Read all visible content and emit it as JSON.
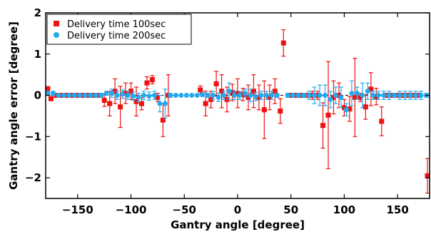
{
  "chart_data": {
    "type": "scatter",
    "xlabel": "Gantry angle [degree]",
    "ylabel": "Gantry angle error [degree]",
    "xlim": [
      -180,
      180
    ],
    "ylim": [
      -2.5,
      2
    ],
    "xticks": [
      -150,
      -100,
      -50,
      0,
      50,
      100,
      150
    ],
    "xtick_labels": [
      "−150",
      "−100",
      "−50",
      "0",
      "50",
      "100",
      "150"
    ],
    "yticks": [
      -2,
      -1,
      0,
      1,
      2
    ],
    "ytick_labels": [
      "−2",
      "−1",
      "0",
      "1",
      "2"
    ],
    "grid": false,
    "legend_position": "top-left",
    "series": [
      {
        "name": "Delivery time 100sec",
        "marker": "square",
        "color": "#ee1111",
        "points": [
          {
            "x": -178,
            "y": 0.16,
            "err": 0.05
          },
          {
            "x": -175,
            "y": -0.08,
            "err": 0.05
          },
          {
            "x": -170,
            "y": 0.0,
            "err": 0.02
          },
          {
            "x": -165,
            "y": 0.0,
            "err": 0.02
          },
          {
            "x": -160,
            "y": 0.0,
            "err": 0.02
          },
          {
            "x": -155,
            "y": 0.0,
            "err": 0.02
          },
          {
            "x": -150,
            "y": 0.0,
            "err": 0.02
          },
          {
            "x": -145,
            "y": 0.0,
            "err": 0.02
          },
          {
            "x": -140,
            "y": 0.0,
            "err": 0.02
          },
          {
            "x": -135,
            "y": 0.0,
            "err": 0.02
          },
          {
            "x": -130,
            "y": 0.0,
            "err": 0.05
          },
          {
            "x": -125,
            "y": -0.12,
            "err": 0.15
          },
          {
            "x": -120,
            "y": -0.2,
            "err": 0.3
          },
          {
            "x": -115,
            "y": 0.1,
            "err": 0.3
          },
          {
            "x": -110,
            "y": -0.28,
            "err": 0.5
          },
          {
            "x": -105,
            "y": 0.05,
            "err": 0.25
          },
          {
            "x": -100,
            "y": 0.1,
            "err": 0.2
          },
          {
            "x": -95,
            "y": -0.15,
            "err": 0.35
          },
          {
            "x": -90,
            "y": -0.2,
            "err": 0.15
          },
          {
            "x": -85,
            "y": 0.3,
            "err": 0.15
          },
          {
            "x": -80,
            "y": 0.38,
            "err": 0.1
          },
          {
            "x": -75,
            "y": -0.05,
            "err": 0.1
          },
          {
            "x": -70,
            "y": -0.6,
            "err": 0.4
          },
          {
            "x": -65,
            "y": 0.0,
            "err": 0.5
          },
          {
            "x": -35,
            "y": 0.13,
            "err": 0.1
          },
          {
            "x": -30,
            "y": -0.2,
            "err": 0.3
          },
          {
            "x": -25,
            "y": -0.1,
            "err": 0.2
          },
          {
            "x": -20,
            "y": 0.28,
            "err": 0.3
          },
          {
            "x": -15,
            "y": 0.1,
            "err": 0.4
          },
          {
            "x": -10,
            "y": -0.1,
            "err": 0.3
          },
          {
            "x": -5,
            "y": 0.07,
            "err": 0.2
          },
          {
            "x": 0,
            "y": 0.05,
            "err": 0.35
          },
          {
            "x": 5,
            "y": 0.02,
            "err": 0.15
          },
          {
            "x": 10,
            "y": -0.05,
            "err": 0.3
          },
          {
            "x": 15,
            "y": 0.1,
            "err": 0.4
          },
          {
            "x": 20,
            "y": -0.05,
            "err": 0.3
          },
          {
            "x": 25,
            "y": -0.35,
            "err": 0.7
          },
          {
            "x": 30,
            "y": -0.05,
            "err": 0.3
          },
          {
            "x": 35,
            "y": 0.1,
            "err": 0.3
          },
          {
            "x": 40,
            "y": -0.38,
            "err": 0.3
          },
          {
            "x": 43,
            "y": 1.27,
            "err": 0.32
          },
          {
            "x": 50,
            "y": 0.0,
            "err": 0.05
          },
          {
            "x": 55,
            "y": 0.0,
            "err": 0.05
          },
          {
            "x": 60,
            "y": 0.0,
            "err": 0.05
          },
          {
            "x": 65,
            "y": 0.0,
            "err": 0.05
          },
          {
            "x": 70,
            "y": 0.0,
            "err": 0.1
          },
          {
            "x": 75,
            "y": 0.0,
            "err": 0.1
          },
          {
            "x": 80,
            "y": -0.73,
            "err": 0.55
          },
          {
            "x": 85,
            "y": -0.48,
            "err": 1.3
          },
          {
            "x": 90,
            "y": -0.05,
            "err": 0.4
          },
          {
            "x": 95,
            "y": 0.0,
            "err": 0.3
          },
          {
            "x": 100,
            "y": -0.3,
            "err": 0.2
          },
          {
            "x": 105,
            "y": -0.33,
            "err": 0.3
          },
          {
            "x": 110,
            "y": -0.05,
            "err": 0.95
          },
          {
            "x": 115,
            "y": -0.05,
            "err": 0.1
          },
          {
            "x": 120,
            "y": -0.28,
            "err": 0.3
          },
          {
            "x": 125,
            "y": 0.15,
            "err": 0.4
          },
          {
            "x": 130,
            "y": -0.03,
            "err": 0.2
          },
          {
            "x": 135,
            "y": -0.63,
            "err": 0.35
          },
          {
            "x": 140,
            "y": 0.0,
            "err": 0.05
          },
          {
            "x": 145,
            "y": 0.0,
            "err": 0.05
          },
          {
            "x": 150,
            "y": 0.0,
            "err": 0.05
          },
          {
            "x": 155,
            "y": 0.0,
            "err": 0.05
          },
          {
            "x": 160,
            "y": 0.0,
            "err": 0.05
          },
          {
            "x": 165,
            "y": 0.0,
            "err": 0.05
          },
          {
            "x": 170,
            "y": 0.0,
            "err": 0.05
          },
          {
            "x": 178,
            "y": -1.95,
            "err": 0.42
          }
        ]
      },
      {
        "name": "Delivery time 200sec",
        "marker": "circle",
        "color": "#22aaee",
        "points": [
          {
            "x": -178,
            "y": 0.05,
            "err": 0.05
          },
          {
            "x": -173,
            "y": 0.05,
            "err": 0.05
          },
          {
            "x": -168,
            "y": 0.0,
            "err": 0.02
          },
          {
            "x": -163,
            "y": 0.0,
            "err": 0.02
          },
          {
            "x": -158,
            "y": 0.0,
            "err": 0.02
          },
          {
            "x": -153,
            "y": 0.0,
            "err": 0.02
          },
          {
            "x": -148,
            "y": 0.0,
            "err": 0.02
          },
          {
            "x": -143,
            "y": 0.0,
            "err": 0.02
          },
          {
            "x": -138,
            "y": 0.0,
            "err": 0.02
          },
          {
            "x": -133,
            "y": 0.0,
            "err": 0.05
          },
          {
            "x": -128,
            "y": 0.0,
            "err": 0.05
          },
          {
            "x": -123,
            "y": 0.05,
            "err": 0.05
          },
          {
            "x": -118,
            "y": 0.05,
            "err": 0.1
          },
          {
            "x": -113,
            "y": 0.0,
            "err": 0.1
          },
          {
            "x": -108,
            "y": 0.03,
            "err": 0.1
          },
          {
            "x": -103,
            "y": 0.0,
            "err": 0.1
          },
          {
            "x": -98,
            "y": -0.02,
            "err": 0.1
          },
          {
            "x": -93,
            "y": -0.05,
            "err": 0.1
          },
          {
            "x": -88,
            "y": 0.0,
            "err": 0.1
          },
          {
            "x": -83,
            "y": -0.02,
            "err": 0.1
          },
          {
            "x": -78,
            "y": 0.0,
            "err": 0.1
          },
          {
            "x": -73,
            "y": -0.2,
            "err": 0.2
          },
          {
            "x": -68,
            "y": -0.2,
            "err": 0.35
          },
          {
            "x": -63,
            "y": 0.0,
            "err": 0.05
          },
          {
            "x": -58,
            "y": 0.0,
            "err": 0.02
          },
          {
            "x": -53,
            "y": 0.0,
            "err": 0.02
          },
          {
            "x": -48,
            "y": 0.0,
            "err": 0.02
          },
          {
            "x": -43,
            "y": 0.0,
            "err": 0.02
          },
          {
            "x": -38,
            "y": 0.0,
            "err": 0.02
          },
          {
            "x": -33,
            "y": 0.02,
            "err": 0.05
          },
          {
            "x": -28,
            "y": 0.0,
            "err": 0.05
          },
          {
            "x": -23,
            "y": 0.0,
            "err": 0.1
          },
          {
            "x": -18,
            "y": -0.05,
            "err": 0.1
          },
          {
            "x": -13,
            "y": 0.0,
            "err": 0.1
          },
          {
            "x": -8,
            "y": 0.1,
            "err": 0.2
          },
          {
            "x": -3,
            "y": 0.0,
            "err": 0.1
          },
          {
            "x": 2,
            "y": 0.0,
            "err": 0.1
          },
          {
            "x": 7,
            "y": 0.05,
            "err": 0.1
          },
          {
            "x": 12,
            "y": 0.0,
            "err": 0.15
          },
          {
            "x": 17,
            "y": -0.03,
            "err": 0.1
          },
          {
            "x": 22,
            "y": 0.0,
            "err": 0.1
          },
          {
            "x": 27,
            "y": 0.0,
            "err": 0.1
          },
          {
            "x": 32,
            "y": 0.0,
            "err": 0.1
          },
          {
            "x": 37,
            "y": 0.0,
            "err": 0.05
          },
          {
            "x": 47,
            "y": 0.0,
            "err": 0.05
          },
          {
            "x": 52,
            "y": 0.0,
            "err": 0.02
          },
          {
            "x": 57,
            "y": 0.0,
            "err": 0.02
          },
          {
            "x": 62,
            "y": 0.0,
            "err": 0.05
          },
          {
            "x": 67,
            "y": 0.0,
            "err": 0.1
          },
          {
            "x": 72,
            "y": 0.0,
            "err": 0.2
          },
          {
            "x": 77,
            "y": 0.0,
            "err": 0.25
          },
          {
            "x": 82,
            "y": 0.0,
            "err": 0.25
          },
          {
            "x": 87,
            "y": -0.1,
            "err": 0.2
          },
          {
            "x": 92,
            "y": 0.0,
            "err": 0.2
          },
          {
            "x": 97,
            "y": -0.05,
            "err": 0.25
          },
          {
            "x": 102,
            "y": -0.35,
            "err": 0.15
          },
          {
            "x": 107,
            "y": 0.05,
            "err": 0.3
          },
          {
            "x": 112,
            "y": 0.05,
            "err": 0.15
          },
          {
            "x": 117,
            "y": 0.0,
            "err": 0.3
          },
          {
            "x": 122,
            "y": 0.1,
            "err": 0.2
          },
          {
            "x": 127,
            "y": 0.0,
            "err": 0.1
          },
          {
            "x": 132,
            "y": 0.0,
            "err": 0.1
          },
          {
            "x": 137,
            "y": 0.0,
            "err": 0.1
          },
          {
            "x": 142,
            "y": 0.0,
            "err": 0.1
          },
          {
            "x": 147,
            "y": 0.0,
            "err": 0.05
          },
          {
            "x": 152,
            "y": 0.0,
            "err": 0.1
          },
          {
            "x": 157,
            "y": 0.0,
            "err": 0.1
          },
          {
            "x": 162,
            "y": 0.0,
            "err": 0.1
          },
          {
            "x": 167,
            "y": 0.0,
            "err": 0.1
          },
          {
            "x": 172,
            "y": 0.0,
            "err": 0.1
          },
          {
            "x": 177,
            "y": 0.0,
            "err": 0.05
          }
        ]
      }
    ]
  }
}
